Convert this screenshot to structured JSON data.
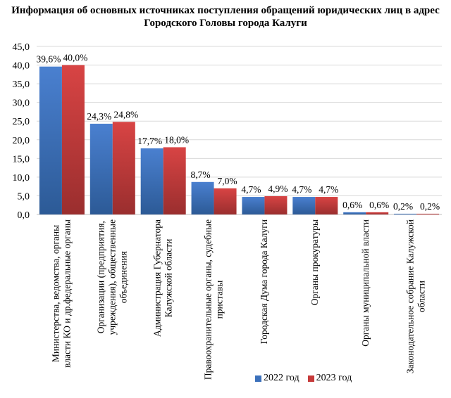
{
  "chart_data": {
    "type": "bar",
    "title": "Информация об основных источниках поступления обращений юридических лиц в адрес Городского Головы города Калуги",
    "categories": [
      "Министерства, ведомства, органы\nвласти КО и др.федеральные органы",
      "Организации (предприятия,\nучреждения), общественные\nобъединения",
      "Администрация Губернатора\nКалужской области",
      "Правоохранительные органы, судебные\nприставы",
      "Городская Дума города Калуги",
      "Органы прокуратуры",
      "Органы муниципальной власти",
      "Законодательное собрание Калужской\nобласти"
    ],
    "series": [
      {
        "name": "2022 год",
        "color": "#3b70bb",
        "values": [
          39.6,
          24.3,
          17.7,
          8.7,
          4.7,
          4.7,
          0.6,
          0.2
        ],
        "labels": [
          "39,6%",
          "24,3%",
          "17,7%",
          "8,7%",
          "4,7%",
          "4,7%",
          "0,6%",
          "0,2%"
        ]
      },
      {
        "name": "2023 год",
        "color": "#c63a3a",
        "values": [
          40.0,
          24.8,
          18.0,
          7.0,
          4.9,
          4.7,
          0.6,
          0.2
        ],
        "labels": [
          "40,0%",
          "24,8%",
          "18,0%",
          "7,0%",
          "4,9%",
          "4,7%",
          "0,6%",
          "0,2%"
        ]
      }
    ],
    "ylim": [
      0,
      45
    ],
    "yticks": [
      "0,0",
      "5,0",
      "10,0",
      "15,0",
      "20,0",
      "25,0",
      "30,0",
      "35,0",
      "40,0",
      "45,0"
    ],
    "grid": true,
    "legend": "bottom-right"
  }
}
